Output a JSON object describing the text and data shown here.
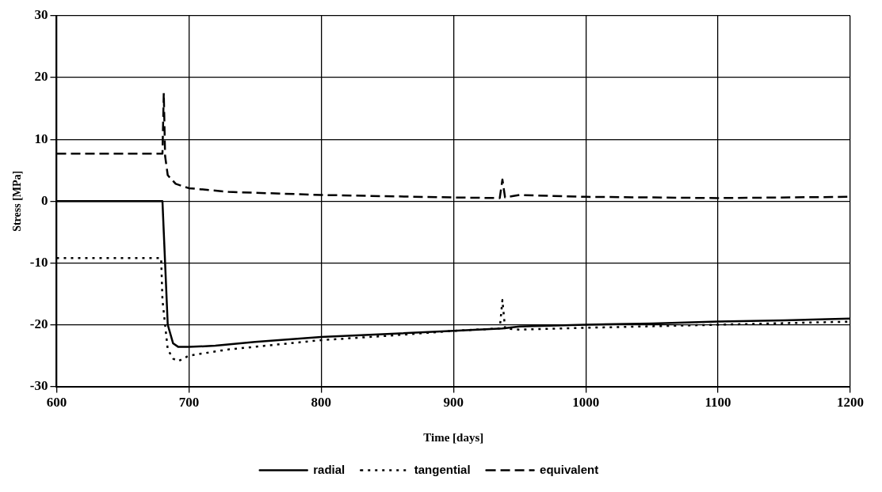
{
  "chart_data": {
    "type": "line",
    "xlabel": "Time [days]",
    "ylabel": "Stress [MPa]",
    "xlim": [
      600,
      1200
    ],
    "xticks": [
      600,
      700,
      800,
      900,
      1000,
      1100,
      1200
    ],
    "ylim": [
      -30,
      30
    ],
    "yticks": [
      -30,
      -20,
      -10,
      0,
      10,
      20,
      30
    ],
    "grid": true,
    "legend": "bottom",
    "marker": "none",
    "series": [
      {
        "name": "radial",
        "color": "#000000",
        "line_style": "solid",
        "x": [
          600,
          680,
          681,
          684,
          688,
          692,
          700,
          720,
          750,
          800,
          850,
          900,
          937,
          950,
          1000,
          1050,
          1100,
          1150,
          1200
        ],
        "values": [
          0,
          0,
          -5,
          -20,
          -23,
          -23.6,
          -23.6,
          -23.4,
          -22.8,
          -22,
          -21.5,
          -21,
          -20.6,
          -20.3,
          -20,
          -19.8,
          -19.5,
          -19.3,
          -19
        ]
      },
      {
        "name": "tangential",
        "color": "#000000",
        "line_style": "dotted",
        "x": [
          600,
          679,
          680,
          684,
          688,
          692,
          700,
          730,
          800,
          850,
          900,
          935,
          937,
          939,
          950,
          1000,
          1100,
          1200
        ],
        "values": [
          -9.2,
          -9.2,
          -16,
          -24,
          -25.5,
          -25.9,
          -25,
          -24,
          -22.5,
          -21.8,
          -21,
          -20.6,
          -16,
          -20.6,
          -20.8,
          -20.5,
          -20,
          -19.5
        ]
      },
      {
        "name": "equivalent",
        "color": "#000000",
        "line_style": "dashed",
        "x": [
          600,
          680,
          681,
          682,
          684,
          690,
          700,
          730,
          800,
          900,
          935,
          937,
          939,
          950,
          1000,
          1100,
          1200
        ],
        "values": [
          7.7,
          7.7,
          17.5,
          7.3,
          4.2,
          2.8,
          2.1,
          1.5,
          1,
          0.6,
          0.5,
          3.5,
          0.6,
          1,
          0.7,
          0.5,
          0.7
        ]
      }
    ]
  }
}
